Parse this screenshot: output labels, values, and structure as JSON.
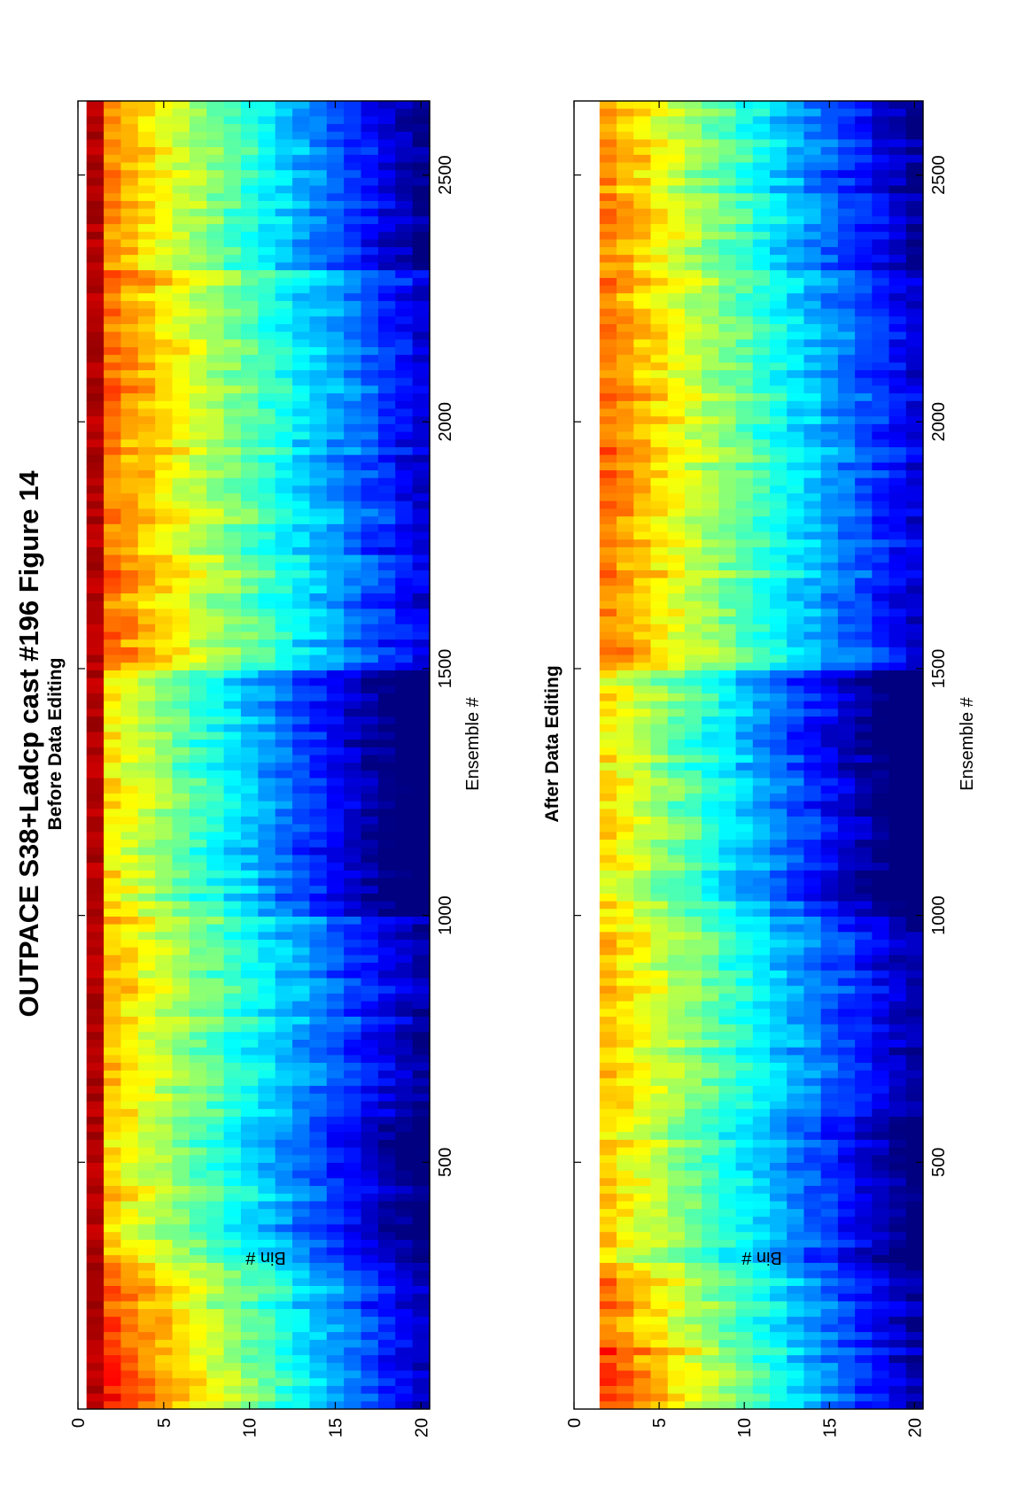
{
  "figure": {
    "title": "OUTPACE S38+Ladcp cast #196  Figure 14"
  },
  "chart_data": [
    {
      "type": "heatmap",
      "title": "Before Data Editing",
      "xlabel": "Ensemble #",
      "ylabel": "Bin #",
      "xlim": [
        0,
        2650
      ],
      "ylim": [
        0,
        20.5
      ],
      "x_ticks": [
        500,
        1000,
        1500,
        2000,
        2500
      ],
      "x_tick_labels": [
        "500",
        "1000",
        "1500",
        "2000",
        "2500"
      ],
      "y_ticks": [
        0,
        5,
        10,
        15,
        20
      ],
      "y_tick_labels": [
        "0",
        "5",
        "10",
        "15",
        "20"
      ],
      "colormap": "jet",
      "profile_segments": [
        {
          "x": [
            0,
            120
          ],
          "intensity_bin1": 0.9,
          "decay_per_bin": 0.043
        },
        {
          "x": [
            120,
            300
          ],
          "intensity_bin1": 0.82,
          "decay_per_bin": 0.04
        },
        {
          "x": [
            300,
            600
          ],
          "intensity_bin1": 0.7,
          "decay_per_bin": 0.038
        },
        {
          "x": [
            600,
            1000
          ],
          "intensity_bin1": 0.72,
          "decay_per_bin": 0.036
        },
        {
          "x": [
            1000,
            1500
          ],
          "intensity_bin1": 0.68,
          "decay_per_bin": 0.04
        },
        {
          "x": [
            1500,
            2300
          ],
          "intensity_bin1": 0.8,
          "decay_per_bin": 0.037
        },
        {
          "x": [
            2300,
            2650
          ],
          "intensity_bin1": 0.78,
          "decay_per_bin": 0.04
        }
      ],
      "first_bin_row": true
    },
    {
      "type": "heatmap",
      "title": "After Data Editing",
      "xlabel": "Ensemble #",
      "ylabel": "Bin #",
      "xlim": [
        0,
        2650
      ],
      "ylim": [
        0,
        20.5
      ],
      "x_ticks": [
        500,
        1000,
        1500,
        2000,
        2500
      ],
      "x_tick_labels": [
        "500",
        "1000",
        "1500",
        "2000",
        "2500"
      ],
      "y_ticks": [
        0,
        5,
        10,
        15,
        20
      ],
      "y_tick_labels": [
        "0",
        "5",
        "10",
        "15",
        "20"
      ],
      "colormap": "jet",
      "profile_segments": [
        {
          "x": [
            0,
            120
          ],
          "intensity_bin1": 0.86,
          "decay_per_bin": 0.043
        },
        {
          "x": [
            120,
            300
          ],
          "intensity_bin1": 0.8,
          "decay_per_bin": 0.04
        },
        {
          "x": [
            300,
            600
          ],
          "intensity_bin1": 0.7,
          "decay_per_bin": 0.038
        },
        {
          "x": [
            600,
            1000
          ],
          "intensity_bin1": 0.72,
          "decay_per_bin": 0.036
        },
        {
          "x": [
            1000,
            1500
          ],
          "intensity_bin1": 0.68,
          "decay_per_bin": 0.04
        },
        {
          "x": [
            1500,
            2300
          ],
          "intensity_bin1": 0.8,
          "decay_per_bin": 0.037
        },
        {
          "x": [
            2300,
            2650
          ],
          "intensity_bin1": 0.78,
          "decay_per_bin": 0.04
        }
      ],
      "first_bin_row": false
    }
  ]
}
